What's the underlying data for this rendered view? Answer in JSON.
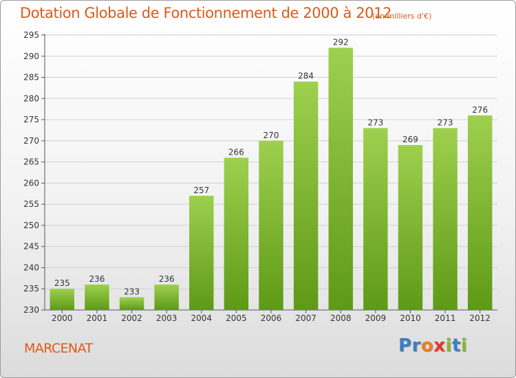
{
  "header": {
    "title": "Dotation Globale de Fonctionnement de 2000 à 2012",
    "unit": "(en milliers d'€)"
  },
  "footer": {
    "commune": "MARCENAT",
    "logo_letters": [
      "P",
      "r",
      "o",
      "x",
      "i",
      "t",
      "i"
    ],
    "logo_colors": [
      "#3b7fc4",
      "#3b7fc4",
      "#f07d1a",
      "#e8352b",
      "#8ab82c",
      "#3b7fc4",
      "#8ab82c"
    ]
  },
  "colors": {
    "accent": "#e05818",
    "bar_top": "#9ed04e",
    "bar_bottom": "#5e9a16",
    "grid": "#d0d0d0"
  },
  "chart_data": {
    "type": "bar",
    "title": "Dotation Globale de Fonctionnement de 2000 à 2012",
    "subtitle": "(en milliers d'€)",
    "categories": [
      "2000",
      "2001",
      "2002",
      "2003",
      "2004",
      "2005",
      "2006",
      "2007",
      "2008",
      "2009",
      "2010",
      "2011",
      "2012"
    ],
    "values": [
      235,
      236,
      233,
      236,
      257,
      266,
      270,
      284,
      292,
      273,
      269,
      273,
      276
    ],
    "ylim": [
      230,
      295
    ],
    "yticks": [
      230,
      235,
      240,
      245,
      250,
      255,
      260,
      265,
      270,
      275,
      280,
      285,
      290,
      295
    ],
    "grid": true,
    "xlabel": "",
    "ylabel": ""
  }
}
